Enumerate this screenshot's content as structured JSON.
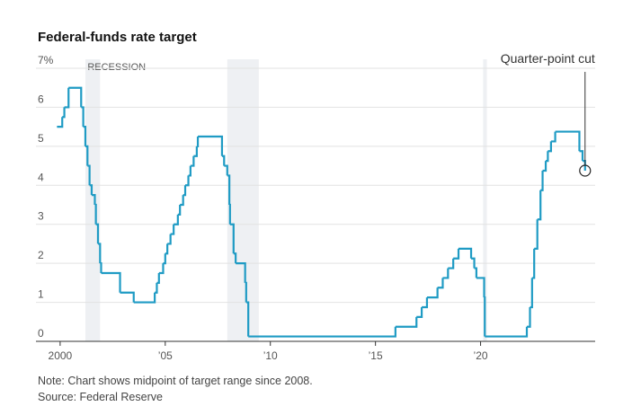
{
  "chart_data": {
    "type": "line",
    "title": "Federal-funds rate target",
    "note": "Note: Chart shows midpoint of target range since 2008.",
    "source": "Source: Federal Reserve",
    "recession_label": "RECESSION",
    "recessions": [
      [
        2001.2,
        2001.9
      ],
      [
        2007.95,
        2009.45
      ],
      [
        2020.12,
        2020.3
      ]
    ],
    "recession_color": "#eef0f3",
    "annotation": "Quarter-point cut",
    "color": "#1f9bc4",
    "grid": true,
    "xlim": [
      1998.85,
      2025.45
    ],
    "ylim": [
      0,
      7
    ],
    "xticks": [
      2000,
      {
        "value": 2005,
        "label": "’05"
      },
      {
        "value": 2010,
        "label": "’10"
      },
      {
        "value": 2015,
        "label": "’15"
      },
      {
        "value": 2020,
        "label": "’20"
      }
    ],
    "yticks": [
      0,
      1,
      2,
      3,
      4,
      5,
      6,
      {
        "value": 7,
        "label": "7%"
      }
    ],
    "x": [
      1999.85,
      2000.1,
      2000.2,
      2000.4,
      2001.0,
      2001.1,
      2001.2,
      2001.3,
      2001.4,
      2001.5,
      2001.65,
      2001.7,
      2001.8,
      2001.9,
      2001.95,
      2002.85,
      2003.5,
      2004.5,
      2004.6,
      2004.7,
      2004.9,
      2005.0,
      2005.1,
      2005.25,
      2005.4,
      2005.6,
      2005.7,
      2005.85,
      2005.95,
      2006.1,
      2006.2,
      2006.35,
      2006.5,
      2006.55,
      2007.7,
      2007.8,
      2007.95,
      2008.05,
      2008.08,
      2008.25,
      2008.35,
      2008.8,
      2008.85,
      2008.95,
      2015.95,
      2016.95,
      2017.2,
      2017.45,
      2017.95,
      2018.2,
      2018.45,
      2018.7,
      2018.95,
      2019.55,
      2019.7,
      2019.8,
      2020.17,
      2020.2,
      2022.2,
      2022.35,
      2022.45,
      2022.55,
      2022.7,
      2022.85,
      2022.95,
      2023.1,
      2023.2,
      2023.35,
      2023.55,
      2024.7,
      2024.85,
      2024.97
    ],
    "series": [
      {
        "name": "Federal-funds rate target",
        "color": "#1f9bc4",
        "values": [
          5.5,
          5.75,
          6.0,
          6.5,
          6.0,
          5.5,
          5.0,
          4.5,
          4.0,
          3.75,
          3.5,
          3.0,
          2.5,
          2.0,
          1.75,
          1.25,
          1.0,
          1.25,
          1.5,
          1.75,
          2.0,
          2.25,
          2.5,
          2.75,
          3.0,
          3.25,
          3.5,
          3.75,
          4.0,
          4.25,
          4.5,
          4.75,
          5.0,
          5.25,
          4.75,
          4.5,
          4.25,
          3.5,
          3.0,
          2.25,
          2.0,
          1.5,
          1.0,
          0.125,
          0.375,
          0.625,
          0.875,
          1.125,
          1.375,
          1.625,
          1.875,
          2.125,
          2.375,
          2.125,
          1.875,
          1.625,
          1.125,
          0.125,
          0.375,
          0.875,
          1.625,
          2.375,
          3.125,
          3.875,
          4.375,
          4.625,
          4.875,
          5.125,
          5.375,
          4.875,
          4.625,
          4.375
        ]
      }
    ]
  }
}
